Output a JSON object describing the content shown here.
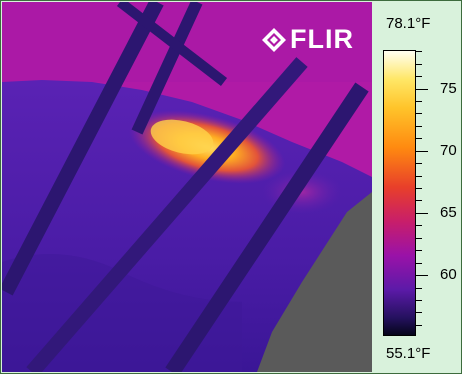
{
  "logo": {
    "text": "FLIR",
    "icon": "flir-diamond-logo-icon"
  },
  "temperature": {
    "unit": "°F",
    "max_label": "78.1°F",
    "min_label": "55.1°F",
    "max": 78.1,
    "min": 55.1
  },
  "scale": {
    "ticks": [
      "75",
      "70",
      "65",
      "60"
    ],
    "tick_values": [
      75,
      70,
      65,
      60
    ],
    "palette": "iron"
  },
  "colors": {
    "panel_background": "#d9f2dc",
    "background_wall": "#b81aa8",
    "cool_mass": "#4a1ca8",
    "hot_spot": "#ffc42a",
    "frame_lines": "#2a1560",
    "no_data_gray": "#5a5a5a"
  }
}
